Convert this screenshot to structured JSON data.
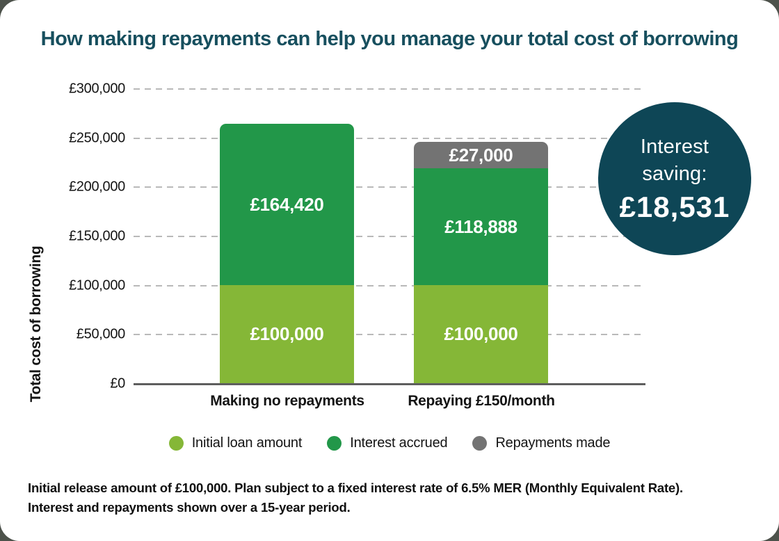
{
  "title": "How making repayments can help you manage your total cost of borrowing",
  "colors": {
    "title_teal": "#174f5e",
    "badge_teal": "#0e4656",
    "initial_loan_green": "#85b737",
    "interest_green": "#229749",
    "repayments_grey": "#737373",
    "gridline_grey": "#b9b9b9",
    "axis_grey": "#5e5e5e"
  },
  "chart_data": {
    "type": "bar",
    "stacked": true,
    "title": "How making repayments can help you manage your total cost of borrowing",
    "categories": [
      "Making no repayments",
      "Repaying £150/month"
    ],
    "series": [
      {
        "name": "Initial loan amount",
        "color": "#85b737",
        "values": [
          100000,
          100000
        ],
        "value_labels": [
          "£100,000",
          "£100,000"
        ]
      },
      {
        "name": "Interest accrued",
        "color": "#229749",
        "values": [
          164420,
          118888
        ],
        "value_labels": [
          "£164,420",
          "£118,888"
        ]
      },
      {
        "name": "Repayments made",
        "color": "#737373",
        "values": [
          0,
          27000
        ],
        "value_labels": [
          "",
          "£27,000"
        ]
      }
    ],
    "totals": [
      264420,
      245888
    ],
    "xlabel": "",
    "ylabel": "Total cost of borrowing",
    "ylim": [
      0,
      300000
    ],
    "ytick_interval": 50000,
    "yticks": [
      {
        "value": 300000,
        "label": "£300,000"
      },
      {
        "value": 250000,
        "label": "£250,000"
      },
      {
        "value": 200000,
        "label": "£200,000"
      },
      {
        "value": 150000,
        "label": "£150,000"
      },
      {
        "value": 100000,
        "label": "£100,000"
      },
      {
        "value": 50000,
        "label": "£50,000"
      },
      {
        "value": 0,
        "label": "£0"
      }
    ],
    "grid": "horizontal-dashed",
    "legend_position": "bottom-center"
  },
  "badge": {
    "line1": "Interest",
    "line2": "saving:",
    "amount": "£18,531"
  },
  "legend": {
    "items": [
      {
        "label": "Initial loan amount"
      },
      {
        "label": "Interest accrued"
      },
      {
        "label": "Repayments made"
      }
    ]
  },
  "footnote": {
    "line1": "Initial release amount of £100,000. Plan subject to a fixed interest rate of 6.5% MER (Monthly Equivalent Rate).",
    "line2": "Interest and repayments shown over a 15-year period."
  }
}
